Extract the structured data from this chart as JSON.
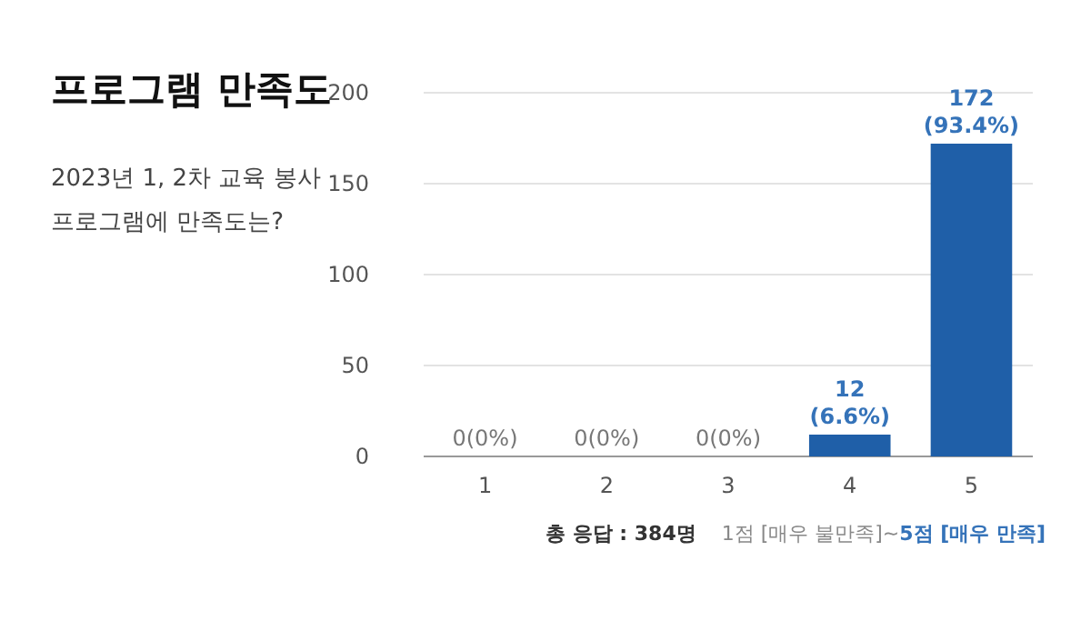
{
  "chart_data": {
    "type": "bar",
    "title": "프로그램 만족도",
    "subtitle": "2023년 1, 2차 교육 봉사\n프로그램에 만족도는?",
    "categories": [
      "1",
      "2",
      "3",
      "4",
      "5"
    ],
    "values": [
      0,
      0,
      0,
      12,
      172
    ],
    "value_labels": [
      "0(0%)",
      "0(0%)",
      "0(0%)",
      "12\n(6.6%)",
      "172\n(93.4%)"
    ],
    "color": "#1f5fa8",
    "ylim": [
      0,
      200
    ],
    "yticks": [
      0,
      50,
      100,
      150,
      200
    ],
    "grid": "y",
    "annotations": [
      "총 응답 : 384명",
      "1점 [매우 불만족]~",
      "5점 [매우 만족]"
    ]
  }
}
